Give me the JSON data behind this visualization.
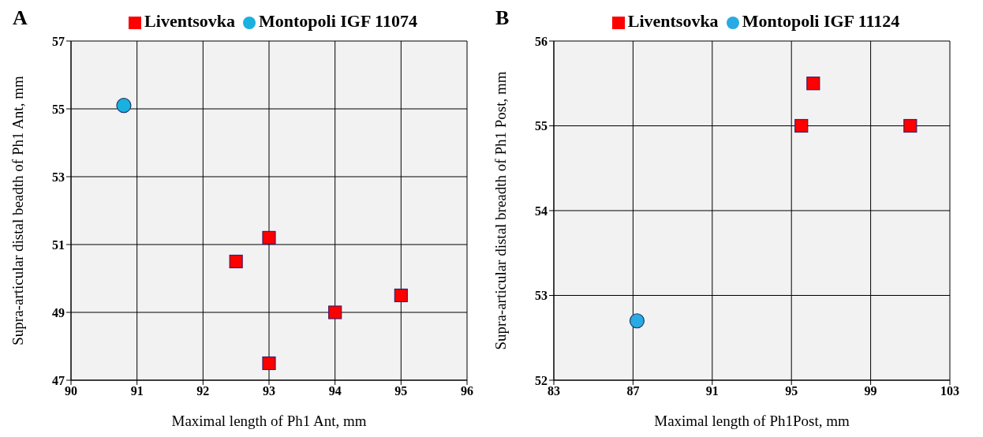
{
  "chart_data": [
    {
      "type": "scatter",
      "title": "A",
      "xlabel": "Maximal length of Ph1 Ant, mm",
      "ylabel": "Supra-articular distal beadth of Ph1 Ant, mm",
      "xlim": [
        90,
        96
      ],
      "xticks": [
        90,
        91,
        92,
        93,
        94,
        95,
        96
      ],
      "ylim": [
        47,
        57
      ],
      "yticks": [
        47,
        49,
        51,
        53,
        55,
        57
      ],
      "grid": true,
      "legend": "top",
      "series": [
        {
          "name": "Liventsovka",
          "color": "#ff0000",
          "marker": "square",
          "x": [
            92.5,
            93,
            93,
            94,
            95
          ],
          "values": [
            50.5,
            51.2,
            47.5,
            49,
            49.5
          ]
        },
        {
          "name": "Montopoli IGF 11074",
          "color": "#1ab0e0",
          "marker": "circle",
          "x": [
            90.8
          ],
          "values": [
            55.1
          ]
        }
      ]
    },
    {
      "type": "scatter",
      "title": "B",
      "xlabel": "Maximal length of Ph1Post, mm",
      "ylabel": "Supra-articular distal breadth of Ph1 Post, mm",
      "xlim": [
        83,
        103
      ],
      "xticks": [
        83,
        87,
        91,
        95,
        99,
        103
      ],
      "ylim": [
        52,
        56
      ],
      "yticks": [
        52,
        53,
        54,
        55,
        56
      ],
      "grid": true,
      "legend": "top",
      "series": [
        {
          "name": "Liventsovka",
          "color": "#ff0000",
          "marker": "square",
          "x": [
            95.5,
            96.1,
            101
          ],
          "values": [
            55,
            55.5,
            55
          ]
        },
        {
          "name": "Montopoli IGF 11124",
          "color": "#29aae2",
          "marker": "circle",
          "x": [
            87.2
          ],
          "values": [
            52.7
          ]
        }
      ]
    }
  ]
}
